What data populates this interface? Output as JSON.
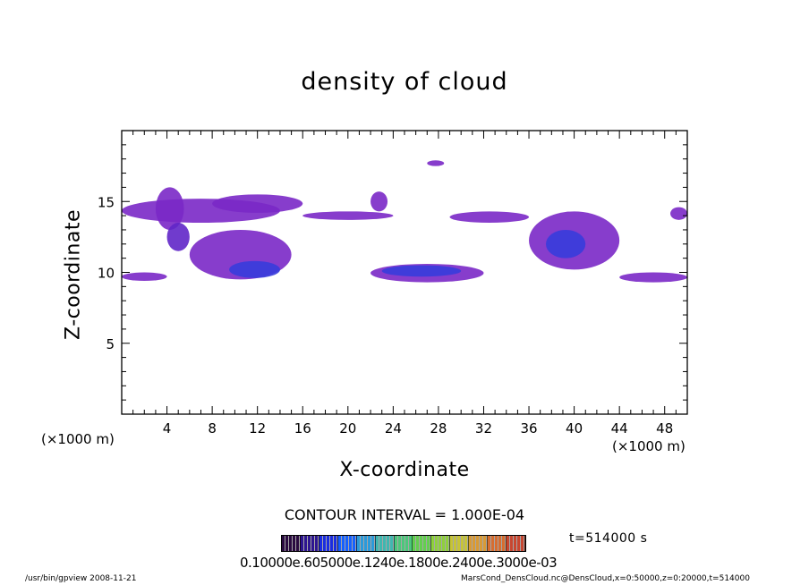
{
  "chart_data": {
    "type": "heatmap",
    "title": "density of cloud",
    "xlabel": "X-coordinate",
    "ylabel": "Z-coordinate",
    "x_unit_label": "(×1000 m)",
    "xlim": [
      0,
      50
    ],
    "ylim": [
      0,
      20
    ],
    "x_ticks": [
      4,
      8,
      12,
      16,
      20,
      24,
      28,
      32,
      36,
      40,
      44,
      48
    ],
    "y_ticks": [
      5,
      10,
      15
    ],
    "contour_interval": "CONTOUR INTERVAL = 1.000E-04",
    "time": "t=514000 s",
    "colorbar_tick_text": "0.10000e.605000e.1240e.1800e.2400e.3000e-03",
    "colorbar_colors": [
      "#2a0a40",
      "#2d1590",
      "#1a2ce0",
      "#1560ff",
      "#2a9adb",
      "#3fb7b0",
      "#4cc77b",
      "#63cf4e",
      "#8fd03c",
      "#c7c437",
      "#d99a35",
      "#d66d30",
      "#c84630"
    ],
    "cloud_regions": [
      {
        "x": [
          0,
          14
        ],
        "z": [
          13.5,
          15.2
        ],
        "intensity": 0.2
      },
      {
        "x": [
          3,
          5.5
        ],
        "z": [
          13,
          16
        ],
        "intensity": 0.3
      },
      {
        "x": [
          4,
          6
        ],
        "z": [
          11.5,
          13.5
        ],
        "intensity": 0.35
      },
      {
        "x": [
          8,
          16
        ],
        "z": [
          14.2,
          15.5
        ],
        "intensity": 0.2
      },
      {
        "x": [
          16,
          24
        ],
        "z": [
          13.7,
          14.3
        ],
        "intensity": 0.15
      },
      {
        "x": [
          22,
          23.5
        ],
        "z": [
          14.3,
          15.7
        ],
        "intensity": 0.2
      },
      {
        "x": [
          27,
          28.5
        ],
        "z": [
          17.5,
          17.9
        ],
        "intensity": 0.15
      },
      {
        "x": [
          29,
          36
        ],
        "z": [
          13.5,
          14.3
        ],
        "intensity": 0.2
      },
      {
        "x": [
          6,
          15
        ],
        "z": [
          9.5,
          13
        ],
        "intensity": 0.25
      },
      {
        "x": [
          9.5,
          14
        ],
        "z": [
          9.6,
          10.8
        ],
        "intensity": 0.55
      },
      {
        "x": [
          0,
          4
        ],
        "z": [
          9.4,
          10
        ],
        "intensity": 0.2
      },
      {
        "x": [
          22,
          32
        ],
        "z": [
          9.3,
          10.6
        ],
        "intensity": 0.3
      },
      {
        "x": [
          23,
          30
        ],
        "z": [
          9.7,
          10.5
        ],
        "intensity": 0.6
      },
      {
        "x": [
          36,
          44
        ],
        "z": [
          10.2,
          14.3
        ],
        "intensity": 0.3
      },
      {
        "x": [
          37.5,
          41
        ],
        "z": [
          11,
          13
        ],
        "intensity": 0.55
      },
      {
        "x": [
          44,
          50
        ],
        "z": [
          9.3,
          10
        ],
        "intensity": 0.2
      },
      {
        "x": [
          48.5,
          50
        ],
        "z": [
          13.7,
          14.6
        ],
        "intensity": 0.2
      }
    ]
  },
  "footer": {
    "left": "/usr/bin/gpview  2008-11-21",
    "right": "MarsCond_DensCloud.nc@DensCloud,x=0:50000,z=0:20000,t=514000"
  }
}
